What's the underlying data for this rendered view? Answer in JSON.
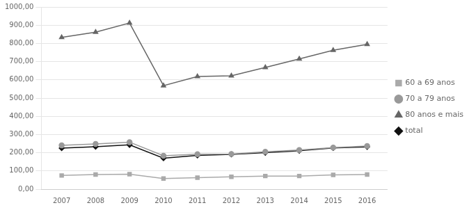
{
  "chart_data": {
    "type": "line",
    "x": [
      2007,
      2008,
      2009,
      2010,
      2011,
      2012,
      2013,
      2014,
      2015,
      2016
    ],
    "series": [
      {
        "name": "60 a 69 anos",
        "color": "#aaaaaa",
        "marker": "square",
        "line_style": "solid",
        "values": [
          75,
          80,
          82,
          58,
          63,
          68,
          72,
          72,
          78,
          80
        ]
      },
      {
        "name": "70 a 79 anos",
        "color": "#999999",
        "marker": "circle",
        "line_style": "solid",
        "values": [
          240,
          248,
          258,
          183,
          192,
          193,
          205,
          215,
          228,
          237
        ]
      },
      {
        "name": "80 anos e mais",
        "color": "#666666",
        "marker": "triangle",
        "line_style": "solid",
        "values": [
          833,
          862,
          912,
          568,
          618,
          622,
          668,
          715,
          762,
          795
        ]
      },
      {
        "name": "total",
        "color": "#111111",
        "marker": "diamond",
        "line_style": "solid",
        "values": [
          225,
          233,
          243,
          170,
          185,
          191,
          200,
          211,
          226,
          232
        ]
      }
    ],
    "xlim": [
      2006.4,
      2016.6
    ],
    "xticks": [
      2007,
      2008,
      2009,
      2010,
      2011,
      2012,
      2013,
      2014,
      2015,
      2016
    ],
    "ylim": [
      0,
      1000
    ],
    "yticks": [
      {
        "value": 0,
        "label": "0,00"
      },
      {
        "value": 100,
        "label": "100,00"
      },
      {
        "value": 200,
        "label": "200,00"
      },
      {
        "value": 300,
        "label": "300,00"
      },
      {
        "value": 400,
        "label": "400,00"
      },
      {
        "value": 500,
        "label": "500,00"
      },
      {
        "value": 600,
        "label": "600,00"
      },
      {
        "value": 700,
        "label": "700,00"
      },
      {
        "value": 800,
        "label": "800,00"
      },
      {
        "value": 900,
        "label": "900,00"
      },
      {
        "value": 1000,
        "label": "1000,00"
      }
    ],
    "grid": "y",
    "legend": "right"
  }
}
